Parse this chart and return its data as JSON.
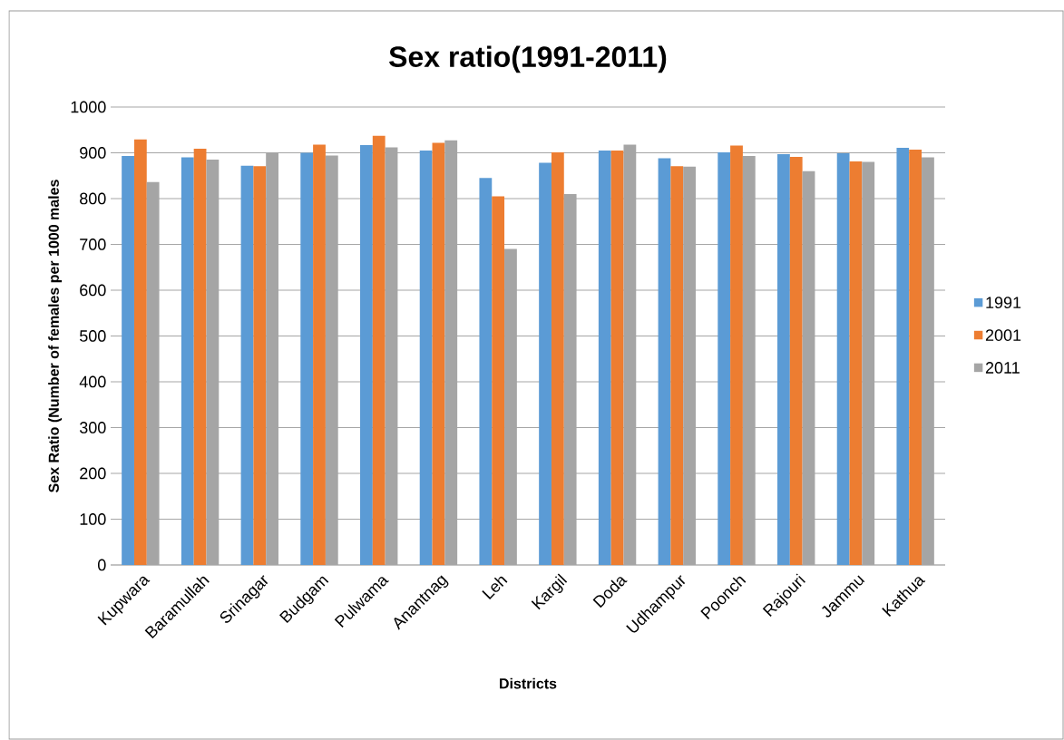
{
  "chart_data": {
    "type": "bar",
    "title": "Sex ratio(1991-2011)",
    "xlabel": "Districts",
    "ylabel": "Sex Ratio (Number of females per 1000 males",
    "categories": [
      "Kupwara",
      "Baramullah",
      "Srinagar",
      "Budgam",
      "Pulwama",
      "Anantnag",
      "Leh",
      "Kargil",
      "Doda",
      "Udhampur",
      "Poonch",
      "Rajouri",
      "Jammu",
      "Kathua"
    ],
    "series": [
      {
        "name": "1991",
        "color": "#5b9bd5",
        "values": [
          893,
          890,
          872,
          900,
          917,
          905,
          845,
          878,
          905,
          888,
          901,
          897,
          899,
          911
        ]
      },
      {
        "name": "2001",
        "color": "#ed7d31",
        "values": [
          929,
          909,
          871,
          918,
          937,
          922,
          805,
          901,
          905,
          871,
          916,
          891,
          881,
          907
        ]
      },
      {
        "name": "2011",
        "color": "#a5a5a5",
        "values": [
          836,
          885,
          901,
          894,
          912,
          927,
          690,
          810,
          918,
          870,
          893,
          860,
          880,
          890
        ]
      }
    ],
    "ylim": [
      0,
      1000
    ],
    "yticks": [
      0,
      100,
      200,
      300,
      400,
      500,
      600,
      700,
      800,
      900,
      1000
    ],
    "grid": "y",
    "legend": "right"
  }
}
